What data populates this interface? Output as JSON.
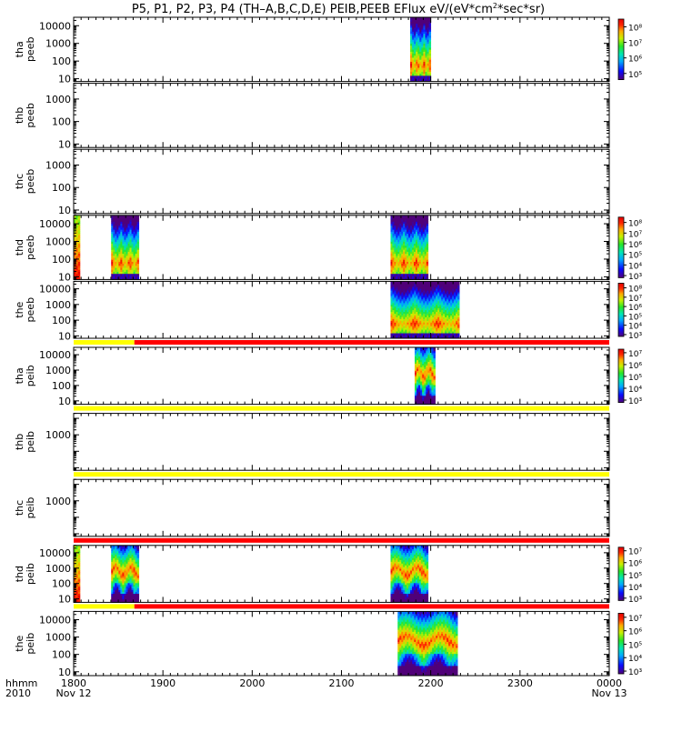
{
  "chart_data": {
    "type": "heatmap",
    "title": "P5, P1, P2, P3, P4 (TH–A,B,C,D,E) PEIB,PEEB EFlux eV/(eV*cm²*sec*sr)",
    "title_prefix": "P5, P1, P2, P3, P4 (TH–A,B,C,D,E) PEIB,PEEB EFlux eV/(eV*cm",
    "title_sup": "2",
    "title_suffix": "*sec*sr)",
    "x_axis": {
      "range": [
        "2010-11-12 18:00",
        "2010-11-13 00:00"
      ],
      "range_hours": [
        18,
        24
      ],
      "ticks": [
        {
          "hour": 18,
          "label": "1800",
          "sub": "Nov 12"
        },
        {
          "hour": 19,
          "label": "1900",
          "sub": ""
        },
        {
          "hour": 20,
          "label": "2000",
          "sub": ""
        },
        {
          "hour": 21,
          "label": "2100",
          "sub": ""
        },
        {
          "hour": 22,
          "label": "2200",
          "sub": ""
        },
        {
          "hour": 23,
          "label": "2300",
          "sub": ""
        },
        {
          "hour": 24,
          "label": "0000",
          "sub": "Nov 13"
        }
      ],
      "label_line1": "hhmm",
      "label_line2": "2010"
    },
    "colormap": "rainbow",
    "panels": [
      {
        "name": "tha-peeb",
        "ylabel1": "tha",
        "ylabel2": "peeb",
        "ylim": [
          7,
          30000
        ],
        "yticks": [
          {
            "v": 10,
            "t": "10"
          },
          {
            "v": 100,
            "t": "100"
          },
          {
            "v": 1000,
            "t": "1000"
          },
          {
            "v": 10000,
            "t": "10000"
          }
        ],
        "data_intervals": [
          {
            "start": 21.77,
            "end": 22.0,
            "style": "electron"
          }
        ],
        "colorbar": {
          "ticks": [
            {
              "e": 5,
              "t": "10⁵"
            },
            {
              "e": 6,
              "t": "10⁶"
            },
            {
              "e": 7,
              "t": "10⁷"
            },
            {
              "e": 8,
              "t": "10⁸"
            }
          ],
          "range_exp": [
            4.6,
            8.5
          ]
        },
        "flag_bar": null
      },
      {
        "name": "thb-peeb",
        "ylabel1": "thb",
        "ylabel2": "peeb",
        "ylim": [
          7,
          5000
        ],
        "yticks": [
          {
            "v": 10,
            "t": "10"
          },
          {
            "v": 100,
            "t": "100"
          },
          {
            "v": 1000,
            "t": "1000"
          }
        ],
        "data_intervals": [],
        "colorbar": null,
        "flag_bar": null
      },
      {
        "name": "thc-peeb",
        "ylabel1": "thc",
        "ylabel2": "peeb",
        "ylim": [
          7,
          5000
        ],
        "yticks": [
          {
            "v": 10,
            "t": "10"
          },
          {
            "v": 100,
            "t": "100"
          },
          {
            "v": 1000,
            "t": "1000"
          }
        ],
        "data_intervals": [],
        "colorbar": null,
        "flag_bar": null
      },
      {
        "name": "thd-peeb",
        "ylabel1": "thd",
        "ylabel2": "peeb",
        "ylim": [
          7,
          30000
        ],
        "yticks": [
          {
            "v": 10,
            "t": "10"
          },
          {
            "v": 100,
            "t": "100"
          },
          {
            "v": 1000,
            "t": "1000"
          },
          {
            "v": 10000,
            "t": "10000"
          }
        ],
        "data_intervals": [
          {
            "start": 18.0,
            "end": 18.07,
            "style": "edge"
          },
          {
            "start": 18.42,
            "end": 18.73,
            "style": "electron"
          },
          {
            "start": 21.55,
            "end": 21.97,
            "style": "electron"
          }
        ],
        "colorbar": {
          "ticks": [
            {
              "e": 3,
              "t": "10³"
            },
            {
              "e": 4,
              "t": "10⁴"
            },
            {
              "e": 5,
              "t": "10⁵"
            },
            {
              "e": 6,
              "t": "10⁶"
            },
            {
              "e": 7,
              "t": "10⁷"
            },
            {
              "e": 8,
              "t": "10⁸"
            }
          ],
          "range_exp": [
            2.8,
            8.5
          ]
        },
        "flag_bar": null
      },
      {
        "name": "the-peeb",
        "ylabel1": "the",
        "ylabel2": "peeb",
        "ylim": [
          7,
          30000
        ],
        "yticks": [
          {
            "v": 10,
            "t": "10"
          },
          {
            "v": 100,
            "t": "100"
          },
          {
            "v": 1000,
            "t": "1000"
          },
          {
            "v": 10000,
            "t": "10000"
          }
        ],
        "data_intervals": [
          {
            "start": 21.55,
            "end": 22.32,
            "style": "electron"
          }
        ],
        "colorbar": {
          "ticks": [
            {
              "e": 3,
              "t": "10³"
            },
            {
              "e": 4,
              "t": "10⁴"
            },
            {
              "e": 5,
              "t": "10⁵"
            },
            {
              "e": 6,
              "t": "10⁶"
            },
            {
              "e": 7,
              "t": "10⁷"
            },
            {
              "e": 8,
              "t": "10⁸"
            }
          ],
          "range_exp": [
            2.8,
            8.5
          ]
        },
        "flag_bar": {
          "segments": [
            {
              "start": 18.0,
              "end": 18.68,
              "color": "#ffff00"
            },
            {
              "start": 18.68,
              "end": 24.0,
              "color": "#ff0000"
            }
          ]
        }
      },
      {
        "name": "tha-peib",
        "ylabel1": "tha",
        "ylabel2": "peib",
        "ylim": [
          6,
          30000
        ],
        "yticks": [
          {
            "v": 10,
            "t": "10"
          },
          {
            "v": 100,
            "t": "100"
          },
          {
            "v": 1000,
            "t": "1000"
          },
          {
            "v": 10000,
            "t": "10000"
          }
        ],
        "data_intervals": [
          {
            "start": 21.82,
            "end": 22.05,
            "style": "ion"
          }
        ],
        "colorbar": {
          "ticks": [
            {
              "e": 3,
              "t": "10³"
            },
            {
              "e": 4,
              "t": "10⁴"
            },
            {
              "e": 5,
              "t": "10⁵"
            },
            {
              "e": 6,
              "t": "10⁶"
            },
            {
              "e": 7,
              "t": "10⁷"
            }
          ],
          "range_exp": [
            2.8,
            7.3
          ]
        },
        "flag_bar": {
          "segments": [
            {
              "start": 18.0,
              "end": 24.0,
              "color": "#ffff00"
            }
          ]
        }
      },
      {
        "name": "thb-peib",
        "ylabel1": "thb",
        "ylabel2": "peib",
        "ylim": [
          7,
          20000
        ],
        "yticks": [
          {
            "v": 1000,
            "t": "1000"
          }
        ],
        "data_intervals": [],
        "colorbar": null,
        "flag_bar": {
          "segments": [
            {
              "start": 18.0,
              "end": 24.0,
              "color": "#ffff00"
            }
          ]
        }
      },
      {
        "name": "thc-peib",
        "ylabel1": "thc",
        "ylabel2": "peib",
        "ylim": [
          7,
          20000
        ],
        "yticks": [
          {
            "v": 1000,
            "t": "1000"
          }
        ],
        "data_intervals": [],
        "colorbar": null,
        "flag_bar": {
          "segments": [
            {
              "start": 18.0,
              "end": 24.0,
              "color": "#ff0000"
            }
          ]
        }
      },
      {
        "name": "thd-peib",
        "ylabel1": "thd",
        "ylabel2": "peib",
        "ylim": [
          6,
          30000
        ],
        "yticks": [
          {
            "v": 10,
            "t": "10"
          },
          {
            "v": 100,
            "t": "100"
          },
          {
            "v": 1000,
            "t": "1000"
          },
          {
            "v": 10000,
            "t": "10000"
          }
        ],
        "data_intervals": [
          {
            "start": 18.0,
            "end": 18.07,
            "style": "edge"
          },
          {
            "start": 18.42,
            "end": 18.73,
            "style": "ion"
          },
          {
            "start": 21.55,
            "end": 21.97,
            "style": "ion"
          }
        ],
        "colorbar": {
          "ticks": [
            {
              "e": 3,
              "t": "10³"
            },
            {
              "e": 4,
              "t": "10⁴"
            },
            {
              "e": 5,
              "t": "10⁵"
            },
            {
              "e": 6,
              "t": "10⁶"
            },
            {
              "e": 7,
              "t": "10⁷"
            }
          ],
          "range_exp": [
            2.8,
            7.3
          ]
        },
        "flag_bar": {
          "segments": [
            {
              "start": 18.0,
              "end": 18.68,
              "color": "#ffff00"
            },
            {
              "start": 18.68,
              "end": 24.0,
              "color": "#ff0000"
            }
          ]
        }
      },
      {
        "name": "the-peib",
        "ylabel1": "the",
        "ylabel2": "peib",
        "ylim": [
          6,
          30000
        ],
        "yticks": [
          {
            "v": 10,
            "t": "10"
          },
          {
            "v": 100,
            "t": "100"
          },
          {
            "v": 1000,
            "t": "1000"
          },
          {
            "v": 10000,
            "t": "10000"
          }
        ],
        "data_intervals": [
          {
            "start": 21.63,
            "end": 22.3,
            "style": "ion"
          }
        ],
        "colorbar": {
          "ticks": [
            {
              "e": 3,
              "t": "10³"
            },
            {
              "e": 4,
              "t": "10⁴"
            },
            {
              "e": 5,
              "t": "10⁵"
            },
            {
              "e": 6,
              "t": "10⁶"
            },
            {
              "e": 7,
              "t": "10⁷"
            }
          ],
          "range_exp": [
            2.8,
            7.3
          ]
        },
        "flag_bar": null
      }
    ]
  }
}
